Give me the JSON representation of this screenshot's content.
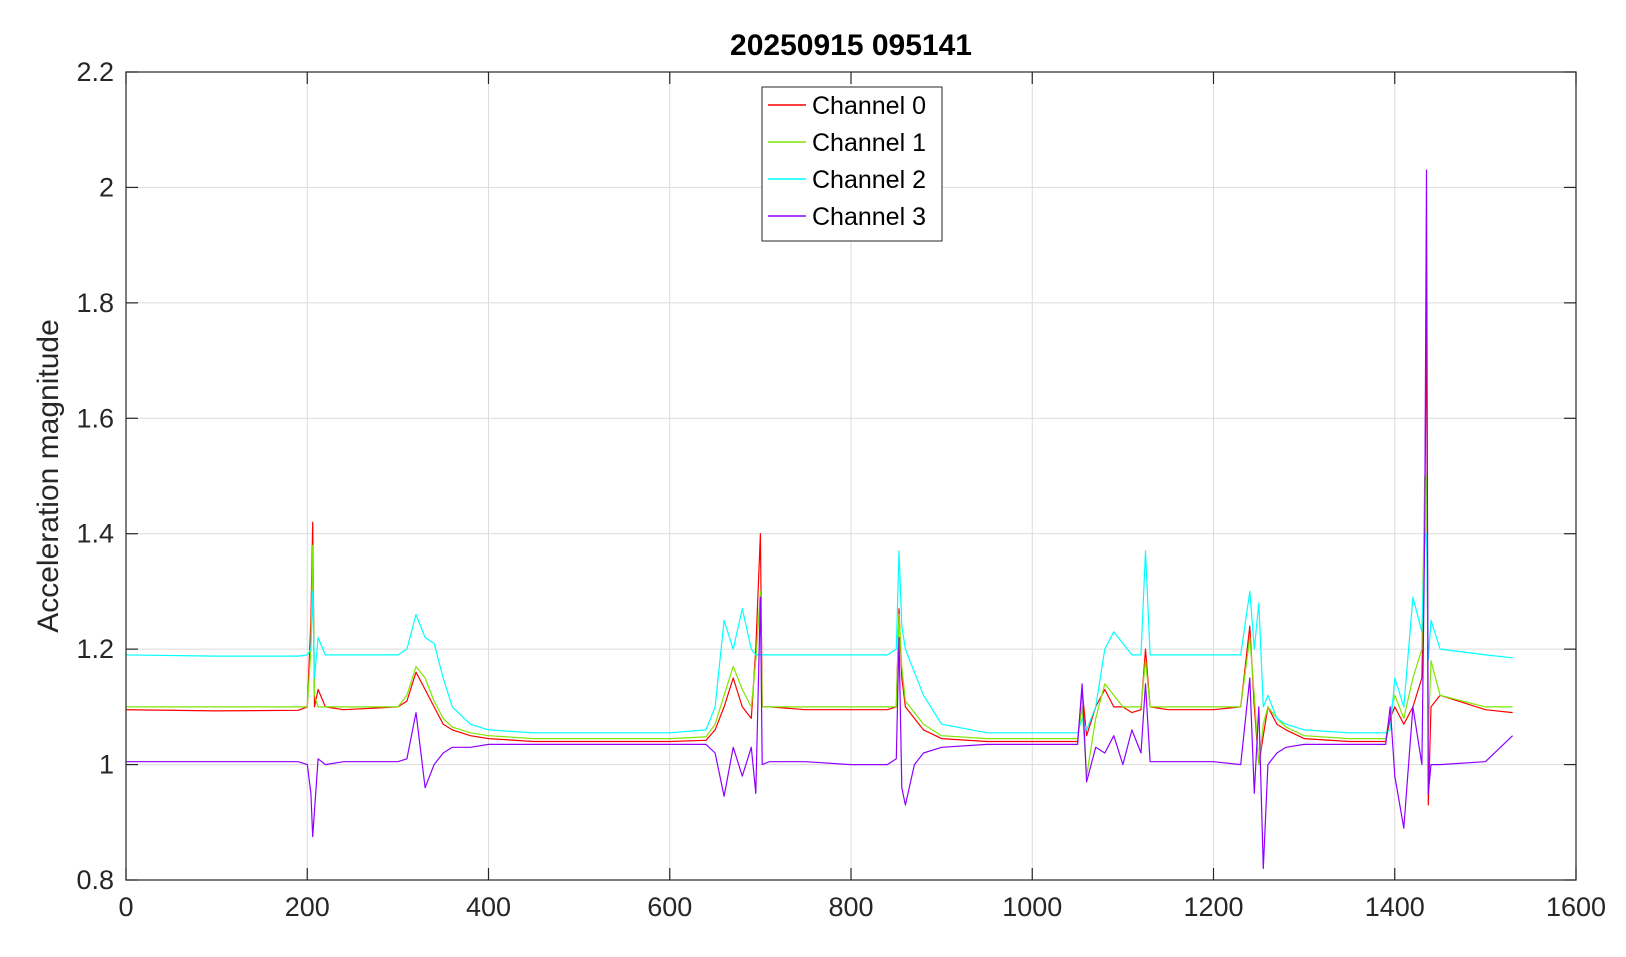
{
  "chart_data": {
    "type": "line",
    "title": "20250915 095141",
    "xlabel": "",
    "ylabel": "Acceleration magnitude",
    "xlim": [
      0,
      1600
    ],
    "ylim": [
      0.8,
      2.2
    ],
    "xticks": [
      0,
      200,
      400,
      600,
      800,
      1000,
      1200,
      1400,
      1600
    ],
    "yticks": [
      0.8,
      1,
      1.2,
      1.4,
      1.6,
      1.8,
      2,
      2.2
    ],
    "xtick_labels": [
      "0",
      "200",
      "400",
      "600",
      "800",
      "1000",
      "1200",
      "1400",
      "1600"
    ],
    "ytick_labels": [
      "0.8",
      "1",
      "1.2",
      "1.4",
      "1.6",
      "1.8",
      "2",
      "2.2"
    ],
    "grid": true,
    "legend_position": "top-center",
    "series": [
      {
        "name": "Channel 0",
        "color": "#ff0000",
        "x": [
          0,
          100,
          190,
          200,
          204,
          206,
          208,
          212,
          220,
          240,
          300,
          310,
          320,
          330,
          340,
          350,
          360,
          380,
          400,
          450,
          500,
          550,
          600,
          640,
          650,
          660,
          670,
          680,
          690,
          695,
          700,
          702,
          710,
          750,
          800,
          840,
          850,
          853,
          856,
          860,
          870,
          880,
          900,
          950,
          1000,
          1050,
          1055,
          1060,
          1070,
          1080,
          1090,
          1100,
          1110,
          1120,
          1125,
          1130,
          1150,
          1200,
          1230,
          1240,
          1245,
          1250,
          1255,
          1260,
          1270,
          1280,
          1300,
          1350,
          1390,
          1395,
          1400,
          1410,
          1420,
          1430,
          1433,
          1435,
          1437,
          1440,
          1450,
          1500,
          1530
        ],
        "y": [
          1.095,
          1.093,
          1.094,
          1.1,
          1.25,
          1.42,
          1.1,
          1.13,
          1.1,
          1.095,
          1.1,
          1.11,
          1.16,
          1.13,
          1.1,
          1.07,
          1.06,
          1.05,
          1.045,
          1.04,
          1.04,
          1.04,
          1.04,
          1.042,
          1.06,
          1.1,
          1.15,
          1.1,
          1.08,
          1.2,
          1.4,
          1.1,
          1.1,
          1.095,
          1.095,
          1.095,
          1.1,
          1.27,
          1.15,
          1.1,
          1.08,
          1.06,
          1.045,
          1.04,
          1.04,
          1.04,
          1.13,
          1.05,
          1.1,
          1.13,
          1.1,
          1.1,
          1.09,
          1.095,
          1.2,
          1.1,
          1.095,
          1.095,
          1.1,
          1.24,
          1.1,
          1.0,
          1.05,
          1.1,
          1.07,
          1.06,
          1.045,
          1.04,
          1.04,
          1.08,
          1.1,
          1.07,
          1.1,
          1.15,
          1.4,
          1.81,
          0.93,
          1.1,
          1.12,
          1.095,
          1.09
        ]
      },
      {
        "name": "Channel 1",
        "color": "#7fe600",
        "x": [
          0,
          100,
          190,
          200,
          204,
          206,
          208,
          212,
          220,
          240,
          300,
          310,
          320,
          330,
          340,
          350,
          360,
          380,
          400,
          450,
          500,
          550,
          600,
          640,
          650,
          660,
          670,
          680,
          690,
          695,
          700,
          702,
          710,
          750,
          800,
          840,
          850,
          853,
          856,
          860,
          870,
          880,
          900,
          950,
          1000,
          1050,
          1055,
          1060,
          1070,
          1080,
          1090,
          1100,
          1110,
          1120,
          1125,
          1130,
          1150,
          1200,
          1230,
          1240,
          1245,
          1250,
          1255,
          1260,
          1270,
          1280,
          1300,
          1350,
          1390,
          1395,
          1400,
          1410,
          1420,
          1430,
          1433,
          1435,
          1437,
          1440,
          1450,
          1500,
          1530
        ],
        "y": [
          1.1,
          1.1,
          1.1,
          1.1,
          1.2,
          1.38,
          1.12,
          1.1,
          1.1,
          1.1,
          1.1,
          1.12,
          1.17,
          1.15,
          1.11,
          1.08,
          1.065,
          1.055,
          1.05,
          1.045,
          1.045,
          1.045,
          1.045,
          1.048,
          1.07,
          1.12,
          1.17,
          1.13,
          1.1,
          1.18,
          1.3,
          1.1,
          1.1,
          1.1,
          1.1,
          1.1,
          1.1,
          1.26,
          1.17,
          1.11,
          1.09,
          1.07,
          1.05,
          1.045,
          1.045,
          1.045,
          1.1,
          0.98,
          1.08,
          1.14,
          1.12,
          1.1,
          1.1,
          1.1,
          1.18,
          1.1,
          1.1,
          1.1,
          1.1,
          1.22,
          1.12,
          1.0,
          1.07,
          1.1,
          1.08,
          1.065,
          1.05,
          1.045,
          1.045,
          1.09,
          1.12,
          1.08,
          1.15,
          1.2,
          1.5,
          1.5,
          1.05,
          1.18,
          1.12,
          1.1,
          1.1
        ]
      },
      {
        "name": "Channel 2",
        "color": "#00ffff",
        "x": [
          0,
          100,
          190,
          200,
          204,
          206,
          208,
          212,
          220,
          240,
          300,
          310,
          320,
          330,
          340,
          350,
          360,
          380,
          400,
          450,
          500,
          550,
          600,
          640,
          650,
          660,
          670,
          680,
          690,
          695,
          700,
          702,
          710,
          750,
          800,
          840,
          850,
          853,
          856,
          860,
          870,
          880,
          900,
          950,
          1000,
          1050,
          1055,
          1060,
          1070,
          1080,
          1090,
          1100,
          1110,
          1120,
          1125,
          1130,
          1150,
          1200,
          1230,
          1240,
          1245,
          1250,
          1255,
          1260,
          1270,
          1280,
          1300,
          1350,
          1390,
          1395,
          1400,
          1410,
          1420,
          1430,
          1433,
          1435,
          1437,
          1440,
          1450,
          1500,
          1530
        ],
        "y": [
          1.19,
          1.188,
          1.188,
          1.19,
          1.2,
          1.3,
          1.15,
          1.22,
          1.19,
          1.19,
          1.19,
          1.2,
          1.26,
          1.22,
          1.21,
          1.15,
          1.1,
          1.07,
          1.06,
          1.055,
          1.055,
          1.055,
          1.055,
          1.06,
          1.1,
          1.25,
          1.2,
          1.27,
          1.2,
          1.19,
          1.19,
          1.19,
          1.19,
          1.19,
          1.19,
          1.19,
          1.2,
          1.37,
          1.24,
          1.2,
          1.16,
          1.12,
          1.07,
          1.055,
          1.055,
          1.055,
          1.08,
          1.06,
          1.1,
          1.2,
          1.23,
          1.21,
          1.19,
          1.19,
          1.37,
          1.19,
          1.19,
          1.19,
          1.19,
          1.3,
          1.2,
          1.28,
          1.1,
          1.12,
          1.08,
          1.07,
          1.06,
          1.055,
          1.055,
          1.06,
          1.15,
          1.1,
          1.29,
          1.23,
          1.4,
          1.4,
          1.18,
          1.25,
          1.2,
          1.19,
          1.185
        ]
      },
      {
        "name": "Channel 3",
        "color": "#8f00ff",
        "x": [
          0,
          100,
          190,
          200,
          204,
          206,
          208,
          212,
          220,
          240,
          300,
          310,
          320,
          330,
          340,
          350,
          360,
          380,
          400,
          450,
          500,
          550,
          600,
          640,
          650,
          660,
          670,
          680,
          690,
          695,
          700,
          702,
          710,
          750,
          800,
          840,
          850,
          853,
          856,
          860,
          870,
          880,
          900,
          950,
          1000,
          1050,
          1055,
          1060,
          1070,
          1080,
          1090,
          1100,
          1110,
          1120,
          1125,
          1130,
          1150,
          1200,
          1230,
          1240,
          1245,
          1250,
          1255,
          1260,
          1270,
          1280,
          1300,
          1350,
          1390,
          1395,
          1400,
          1410,
          1420,
          1430,
          1433,
          1435,
          1437,
          1440,
          1450,
          1500,
          1530
        ],
        "y": [
          1.005,
          1.005,
          1.005,
          1.0,
          0.95,
          0.875,
          0.92,
          1.01,
          1.0,
          1.005,
          1.005,
          1.01,
          1.09,
          0.96,
          1.0,
          1.02,
          1.03,
          1.03,
          1.035,
          1.035,
          1.035,
          1.035,
          1.035,
          1.035,
          1.02,
          0.945,
          1.03,
          0.98,
          1.03,
          0.95,
          1.29,
          1.0,
          1.005,
          1.005,
          1.0,
          1.0,
          1.01,
          1.22,
          0.96,
          0.93,
          1.0,
          1.02,
          1.03,
          1.035,
          1.035,
          1.035,
          1.14,
          0.97,
          1.03,
          1.02,
          1.05,
          1.0,
          1.06,
          1.02,
          1.14,
          1.005,
          1.005,
          1.005,
          1.0,
          1.15,
          0.95,
          1.1,
          0.82,
          1.0,
          1.02,
          1.03,
          1.035,
          1.035,
          1.035,
          1.1,
          0.98,
          0.89,
          1.1,
          1.0,
          1.4,
          2.03,
          0.95,
          1.0,
          1.0,
          1.005,
          1.05
        ]
      }
    ]
  }
}
